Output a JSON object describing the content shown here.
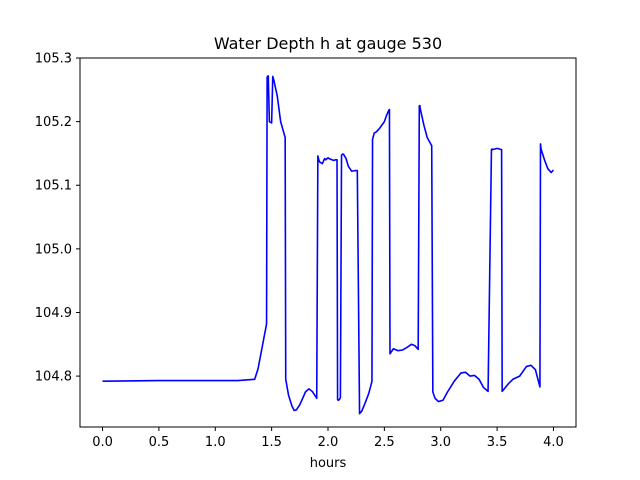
{
  "chart_data": {
    "type": "line",
    "title": "Water Depth h at gauge 530",
    "xlabel": "hours",
    "ylabel": "",
    "xlim": [
      -0.2,
      4.2
    ],
    "ylim": [
      104.72,
      105.3
    ],
    "xticks": [
      0.0,
      0.5,
      1.0,
      1.5,
      2.0,
      2.5,
      3.0,
      3.5,
      4.0
    ],
    "xtick_labels": [
      "0.0",
      "0.5",
      "1.0",
      "1.5",
      "2.0",
      "2.5",
      "3.0",
      "3.5",
      "4.0"
    ],
    "yticks": [
      104.8,
      104.9,
      105.0,
      105.1,
      105.2,
      105.3
    ],
    "ytick_labels": [
      "104.8",
      "104.9",
      "105.0",
      "105.1",
      "105.2",
      "105.3"
    ],
    "grid": false,
    "series": [
      {
        "color": "#0000ff",
        "x": [
          0.0,
          0.5,
          1.0,
          1.2,
          1.35,
          1.38,
          1.41,
          1.44,
          1.455,
          1.46,
          1.465,
          1.47,
          1.48,
          1.49,
          1.5,
          1.51,
          1.52,
          1.55,
          1.58,
          1.62,
          1.625,
          1.65,
          1.68,
          1.7,
          1.72,
          1.75,
          1.8,
          1.83,
          1.86,
          1.9,
          1.91,
          1.92,
          1.925,
          1.93,
          1.95,
          1.97,
          1.98,
          2.0,
          2.02,
          2.05,
          2.07,
          2.08,
          2.085,
          2.09,
          2.1,
          2.11,
          2.12,
          2.13,
          2.135,
          2.14,
          2.16,
          2.18,
          2.21,
          2.24,
          2.26,
          2.28,
          2.285,
          2.3,
          2.33,
          2.36,
          2.38,
          2.39,
          2.395,
          2.41,
          2.43,
          2.46,
          2.5,
          2.52,
          2.54,
          2.545,
          2.55,
          2.58,
          2.62,
          2.66,
          2.7,
          2.74,
          2.77,
          2.8,
          2.81,
          2.815,
          2.82,
          2.85,
          2.88,
          2.92,
          2.93,
          2.95,
          2.98,
          3.02,
          3.06,
          3.12,
          3.18,
          3.22,
          3.26,
          3.3,
          3.34,
          3.38,
          3.42,
          3.45,
          3.455,
          3.46,
          3.5,
          3.54,
          3.545,
          3.55,
          3.6,
          3.64,
          3.7,
          3.76,
          3.8,
          3.84,
          3.88,
          3.885,
          3.89,
          3.92,
          3.95,
          3.98,
          4.0
        ],
        "y": [
          104.792,
          104.793,
          104.793,
          104.793,
          104.795,
          104.812,
          104.84,
          104.868,
          104.882,
          105.27,
          105.271,
          105.272,
          105.2,
          105.199,
          105.198,
          105.271,
          105.265,
          105.24,
          105.2,
          105.175,
          104.795,
          104.77,
          104.753,
          104.746,
          104.747,
          104.755,
          104.775,
          104.78,
          104.776,
          104.765,
          105.146,
          105.139,
          105.137,
          105.136,
          105.134,
          105.142,
          105.14,
          105.143,
          105.141,
          105.139,
          105.14,
          105.14,
          104.763,
          104.762,
          104.763,
          104.766,
          105.147,
          105.149,
          105.149,
          105.148,
          105.142,
          105.13,
          105.122,
          105.123,
          105.123,
          104.741,
          104.742,
          104.745,
          104.758,
          104.772,
          104.785,
          104.792,
          105.172,
          105.182,
          105.184,
          105.19,
          105.2,
          105.21,
          105.218,
          105.219,
          104.835,
          104.843,
          104.84,
          104.841,
          104.845,
          104.85,
          104.848,
          104.842,
          105.225,
          105.225,
          105.219,
          105.195,
          105.175,
          105.162,
          104.775,
          104.765,
          104.76,
          104.762,
          104.775,
          104.792,
          104.805,
          104.806,
          104.8,
          104.801,
          104.795,
          104.782,
          104.776,
          105.156,
          105.157,
          105.156,
          105.158,
          105.156,
          104.776,
          104.777,
          104.788,
          104.795,
          104.8,
          104.815,
          104.817,
          104.81,
          104.783,
          105.165,
          105.157,
          105.14,
          105.126,
          105.12,
          105.124
        ]
      }
    ]
  }
}
